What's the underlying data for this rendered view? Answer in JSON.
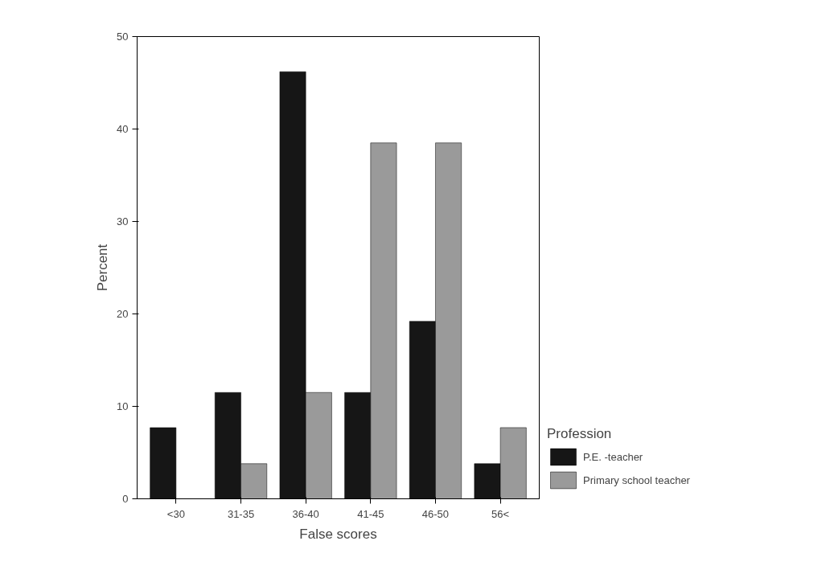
{
  "chart_data": {
    "type": "bar",
    "xlabel": "False scores",
    "ylabel": "Percent",
    "legend_title": "Profession",
    "categories": [
      "<30",
      "31-35",
      "36-40",
      "41-45",
      "46-50",
      "56<"
    ],
    "series": [
      {
        "name": "P.E. -teacher",
        "color": "#161616",
        "values": [
          7.7,
          11.5,
          46.2,
          11.5,
          19.2,
          3.8
        ]
      },
      {
        "name": "Primary school teacher",
        "color": "#9a9a9a",
        "values": [
          null,
          3.8,
          11.5,
          38.5,
          38.5,
          7.7
        ]
      }
    ],
    "ylim": [
      0,
      50
    ],
    "yticks": [
      0,
      10,
      20,
      30,
      40,
      50
    ],
    "grid": false,
    "legend": "right"
  }
}
